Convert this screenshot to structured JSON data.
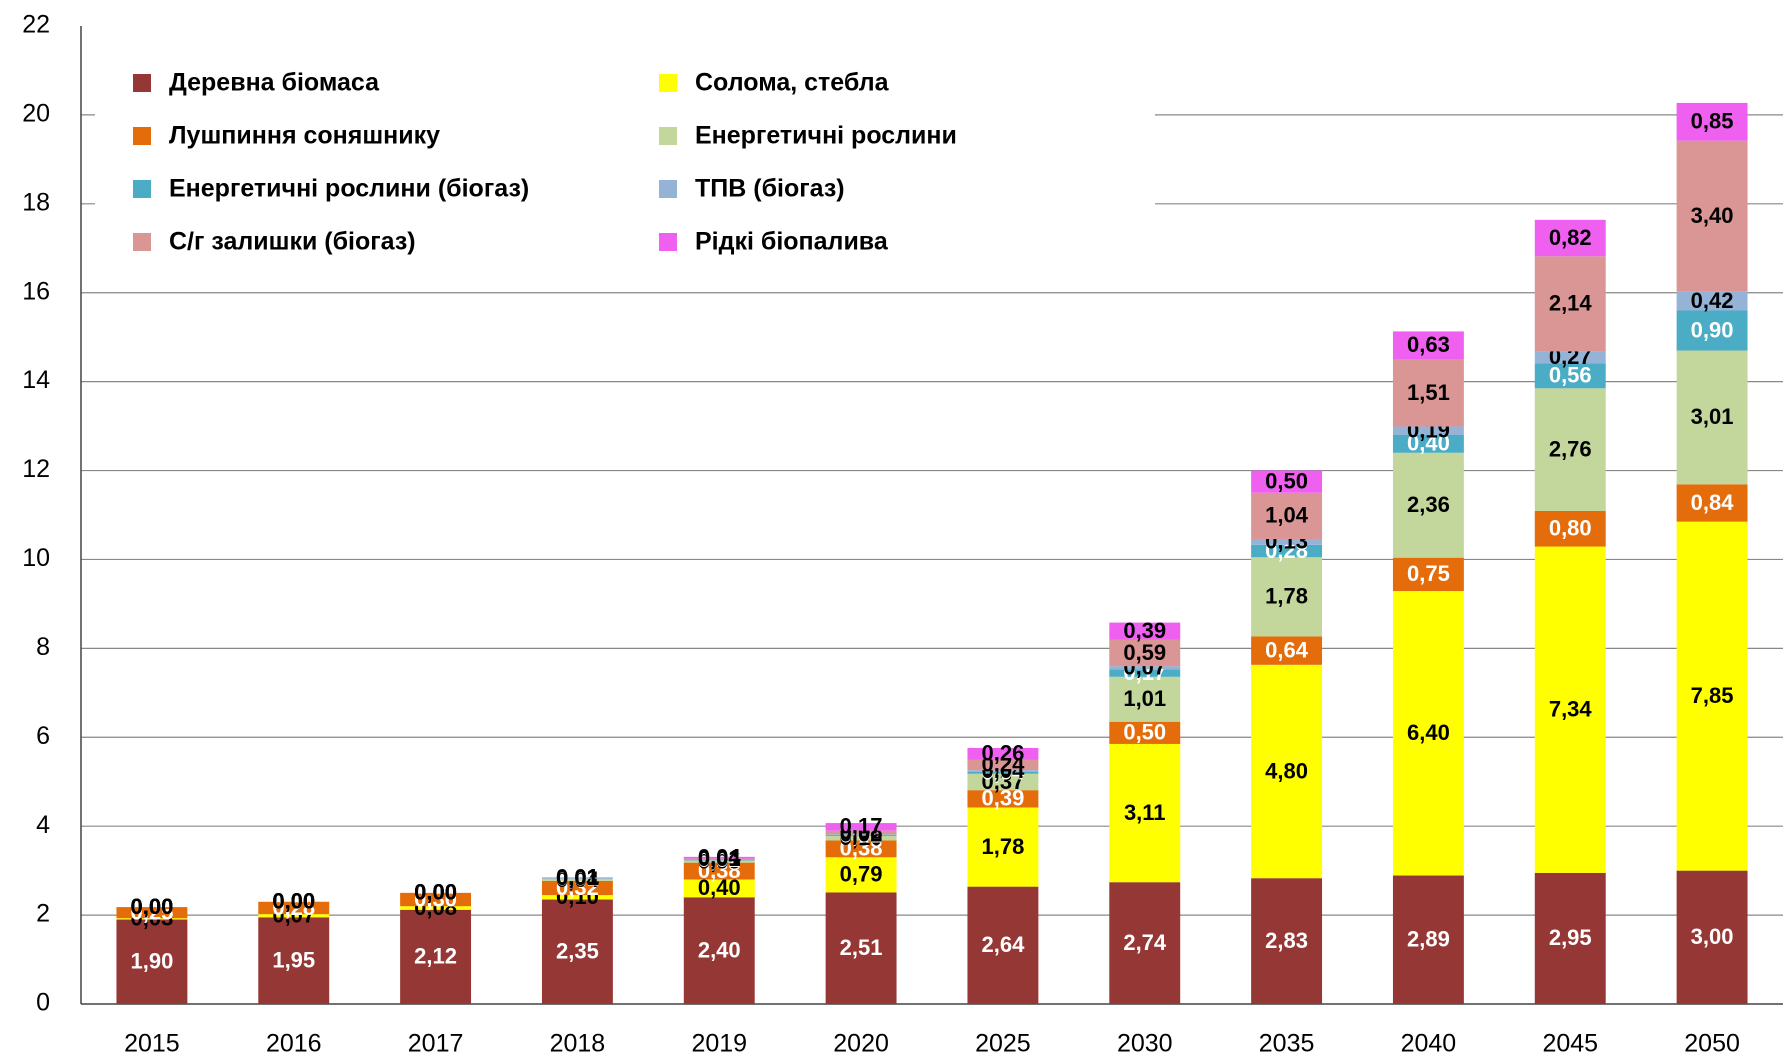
{
  "chart_data": {
    "type": "stacked_bar",
    "categories": [
      "2015",
      "2016",
      "2017",
      "2018",
      "2019",
      "2020",
      "2025",
      "2030",
      "2035",
      "2040",
      "2045",
      "2050"
    ],
    "ylim": [
      0,
      22
    ],
    "yticks": [
      0,
      2,
      4,
      6,
      8,
      10,
      12,
      14,
      16,
      18,
      20,
      22
    ],
    "grid": true,
    "legend": "upper left",
    "series": [
      {
        "name": "Деревна біомаса",
        "color": "#953735",
        "values": [
          1.9,
          1.95,
          2.12,
          2.35,
          2.4,
          2.51,
          2.64,
          2.74,
          2.83,
          2.89,
          2.95,
          3.0
        ],
        "value_labels": [
          "1,90",
          "1,95",
          "2,12",
          "2,35",
          "2,40",
          "2,51",
          "2,64",
          "2,74",
          "2,83",
          "2,89",
          "2,95",
          "3,00"
        ]
      },
      {
        "name": "Солома, стебла",
        "color": "#ffff00",
        "values": [
          0.03,
          0.07,
          0.08,
          0.1,
          0.4,
          0.79,
          1.78,
          3.11,
          4.8,
          6.4,
          7.34,
          7.85
        ],
        "value_labels": [
          "0,03",
          "0,07",
          "0,08",
          "0,10",
          "0,40",
          "0,79",
          "1,78",
          "3,11",
          "4,80",
          "6,40",
          "7,34",
          "7,85"
        ]
      },
      {
        "name": "Лушпиння соняшнику",
        "color": "#e46c0a",
        "values": [
          0.25,
          0.28,
          0.3,
          0.32,
          0.38,
          0.38,
          0.39,
          0.5,
          0.64,
          0.75,
          0.8,
          0.84
        ],
        "value_labels": [
          "0,25",
          "0,28",
          "0,30",
          "0,32",
          "0,38",
          "0,38",
          "0,39",
          "0,50",
          "0,64",
          "0,75",
          "0,80",
          "0,84"
        ]
      },
      {
        "name": "Енергетичні рослини",
        "color": "#c3d69b",
        "values": [
          0.0,
          0.0,
          0.0,
          0.04,
          0.05,
          0.1,
          0.37,
          1.01,
          1.78,
          2.36,
          2.76,
          3.01
        ],
        "value_labels": [
          "0,00",
          "0,00",
          "0,00",
          "0,04",
          "0,05",
          "0,10",
          "0,37",
          "1,01",
          "1,78",
          "2,36",
          "2,76",
          "3,01"
        ]
      },
      {
        "name": "Енергетичні рослини (біогаз)",
        "color": "#4bacc6",
        "values": [
          0.0,
          0.0,
          0.0,
          0.01,
          0.02,
          0.02,
          0.04,
          0.17,
          0.28,
          0.4,
          0.56,
          0.9
        ],
        "value_labels": [
          "0,00",
          "0,00",
          "0,00",
          "0,01",
          "0,02",
          "0,02",
          "0,04",
          "0,17",
          "0,28",
          "0,40",
          "0,56",
          "0,90"
        ]
      },
      {
        "name": "ТПВ (біогаз)",
        "color": "#95b3d7",
        "values": [
          0.0,
          0.0,
          0.0,
          0.01,
          0.01,
          0.02,
          0.04,
          0.07,
          0.13,
          0.19,
          0.27,
          0.42
        ],
        "value_labels": [
          "0,00",
          "0,00",
          "0,00",
          "0,01",
          "0,01",
          "0,02",
          "0,04",
          "0,07",
          "0,13",
          "0,19",
          "0,27",
          "0,42"
        ]
      },
      {
        "name": "С/г залишки (біогаз)",
        "color": "#d99694",
        "values": [
          0.0,
          0.0,
          0.0,
          0.01,
          0.01,
          0.08,
          0.24,
          0.59,
          1.04,
          1.51,
          2.14,
          3.4
        ],
        "value_labels": [
          "0,00",
          "0,00",
          "0,00",
          "0,01",
          "0,01",
          "0,08",
          "0,24",
          "0,59",
          "1,04",
          "1,51",
          "2,14",
          "3,40"
        ]
      },
      {
        "name": "Рідкі біопалива",
        "color": "#f060f0",
        "values": [
          0.0,
          0.0,
          0.0,
          0.01,
          0.04,
          0.17,
          0.26,
          0.39,
          0.5,
          0.63,
          0.82,
          0.85
        ],
        "value_labels": [
          "0,00",
          "0,00",
          "0,00",
          "0,01",
          "0,04",
          "0,17",
          "0,26",
          "0,39",
          "0,50",
          "0,63",
          "0,82",
          "0,85"
        ]
      }
    ]
  }
}
